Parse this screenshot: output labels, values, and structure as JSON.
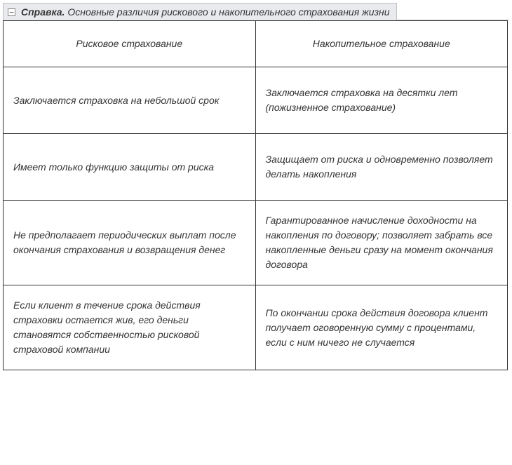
{
  "header": {
    "collapse_glyph": "⊟",
    "title_bold": "Справка.",
    "title_rest": "Основные различия рискового и накопительного страхования жизни"
  },
  "table": {
    "columns": [
      "Рисковое страхование",
      "Накопительное страхование"
    ],
    "rows": [
      [
        "Заключается страховка на небольшой срок",
        "Заключается страховка на десятки лет (пожизненное страхование)"
      ],
      [
        "Имеет только функцию защиты от риска",
        "Защищает от риска и одновременно позволяет делать накопления"
      ],
      [
        "Не предполагает периодических выплат после окончания страхования и возвращения денег",
        "Гарантированное начисление доходности на накопления по договору; позволяет забрать все накопленные деньги сразу на момент окончания договора"
      ],
      [
        "Если клиент в течение срока действия страховки остается жив, его деньги становятся собственностью рисковой страховой компании",
        "По окончании срока действия договора клиент получает оговоренную сумму с процентами, если с ним ничего не случается"
      ]
    ]
  },
  "style": {
    "tab_bg": "#e8eaed",
    "border_color": "#333333",
    "tab_border": "#c0c0c0",
    "font_color": "#333333",
    "font_size_pt": 10.5,
    "italic": true
  }
}
